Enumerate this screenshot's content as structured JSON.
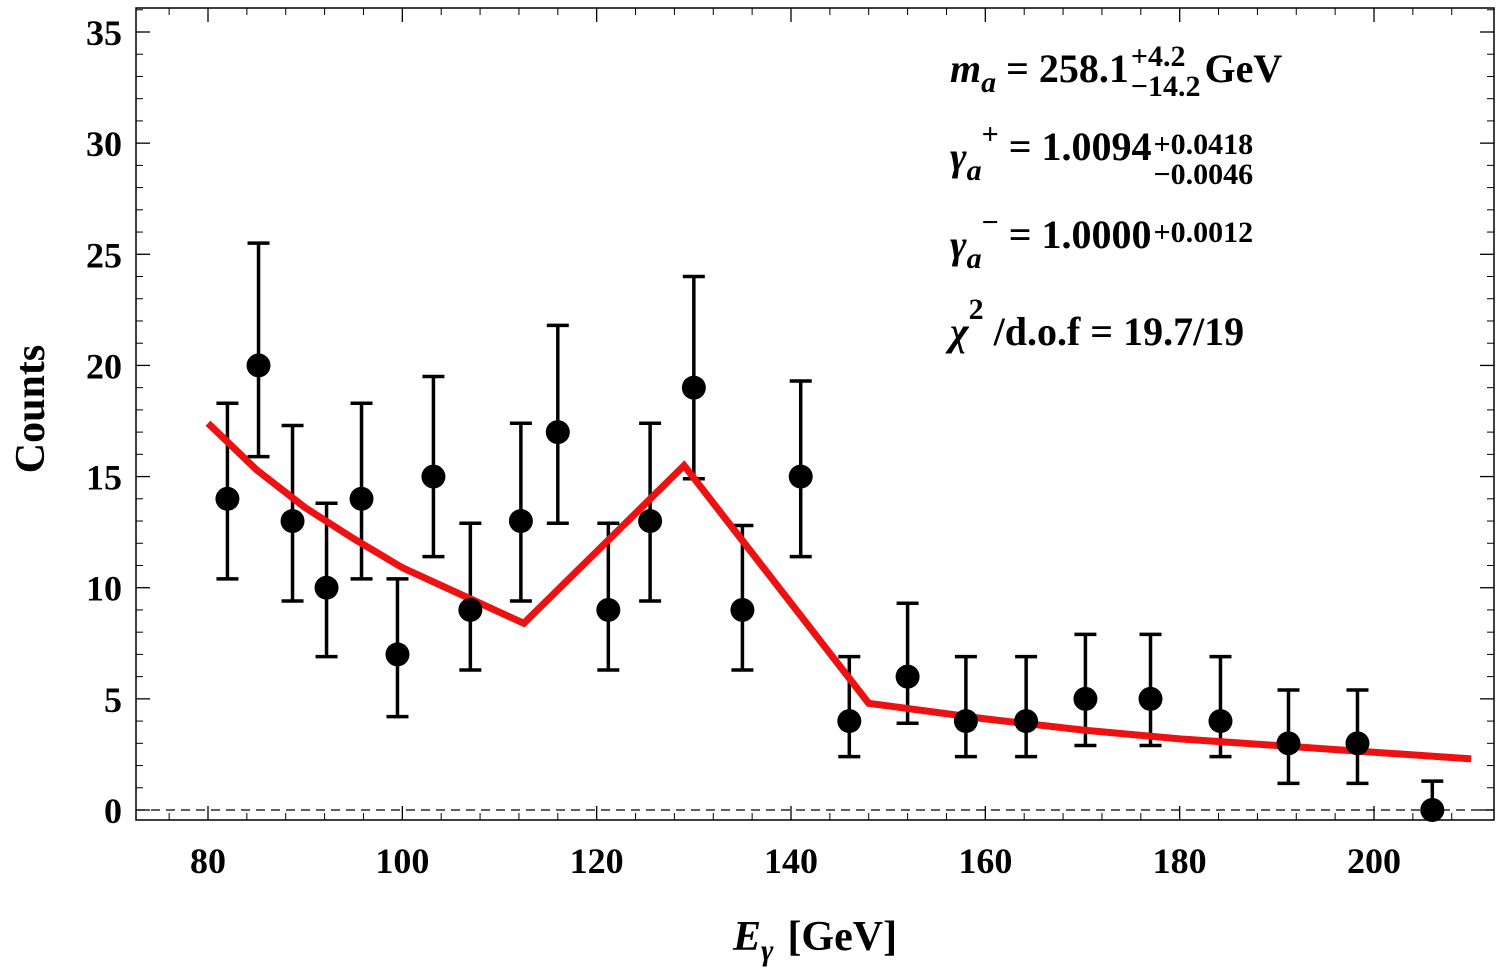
{
  "chart_data": {
    "type": "scatter",
    "title": "",
    "xlabel_symbol": "E",
    "xlabel_sub": "γ",
    "xlabel_unit": "[GeV]",
    "ylabel": "Counts",
    "xlim": [
      74,
      212
    ],
    "ylim": [
      0,
      36
    ],
    "xticks": [
      80,
      100,
      120,
      140,
      160,
      180,
      200
    ],
    "yticks": [
      0,
      5,
      10,
      15,
      20,
      25,
      30,
      35
    ],
    "grid": false,
    "zero_line": "dashed",
    "series": [
      {
        "name": "data",
        "style": "points-with-errorbars",
        "color": "#000000",
        "x": [
          82,
          85.2,
          88.7,
          92.2,
          95.8,
          99.5,
          103.2,
          107,
          112.2,
          116,
          121.2,
          125.5,
          130,
          135,
          141,
          146,
          152,
          158,
          164.2,
          170.3,
          177,
          184.2,
          191.2,
          198.3,
          206
        ],
        "y": [
          14,
          20,
          13,
          10,
          14,
          7,
          15,
          9,
          13,
          17,
          9,
          13,
          19,
          9,
          15,
          4,
          6,
          4,
          4,
          5,
          5,
          4,
          3,
          3,
          0
        ],
        "err_low": [
          3.6,
          4.1,
          3.6,
          3.1,
          3.6,
          2.8,
          3.6,
          2.7,
          3.6,
          4.1,
          2.7,
          3.6,
          4.1,
          2.7,
          3.6,
          1.6,
          2.1,
          1.6,
          1.6,
          2.1,
          2.1,
          1.6,
          1.8,
          1.8,
          0
        ],
        "err_high": [
          4.3,
          5.5,
          4.3,
          3.8,
          4.3,
          3.4,
          4.5,
          3.9,
          4.4,
          4.8,
          3.9,
          4.4,
          5.0,
          3.8,
          4.3,
          2.9,
          3.3,
          2.9,
          2.9,
          2.9,
          2.9,
          2.9,
          2.4,
          2.4,
          1.3
        ]
      },
      {
        "name": "fit",
        "style": "line",
        "color": "#ee1111",
        "x": [
          80,
          85,
          90,
          95,
          100,
          105,
          110,
          112.5,
          129,
          148,
          160,
          170,
          180,
          190,
          200,
          210
        ],
        "y": [
          17.4,
          15.3,
          13.6,
          12.2,
          10.9,
          9.9,
          8.9,
          8.4,
          15.5,
          4.8,
          4.1,
          3.6,
          3.2,
          2.9,
          2.6,
          2.3
        ]
      }
    ],
    "annotations": [
      {
        "lhs": "m",
        "lhs_sub": "a",
        "rhs": "= 258.1",
        "sup": "+4.2",
        "sub": "−14.2",
        "suffix": " GeV"
      },
      {
        "lhs": "γ",
        "lhs_sub": "a",
        "lhs_sup": "+",
        "rhs": "= 1.0094",
        "sup": "+0.0418",
        "sub": "−0.0046"
      },
      {
        "lhs": "γ",
        "lhs_sub": "a",
        "lhs_sup": "−",
        "rhs": "= 1.0000",
        "sup": "+0.0012"
      },
      {
        "lhs": "χ",
        "lhs_sup": "2",
        "rhs": "/d.o.f = 19.7/19"
      }
    ]
  }
}
